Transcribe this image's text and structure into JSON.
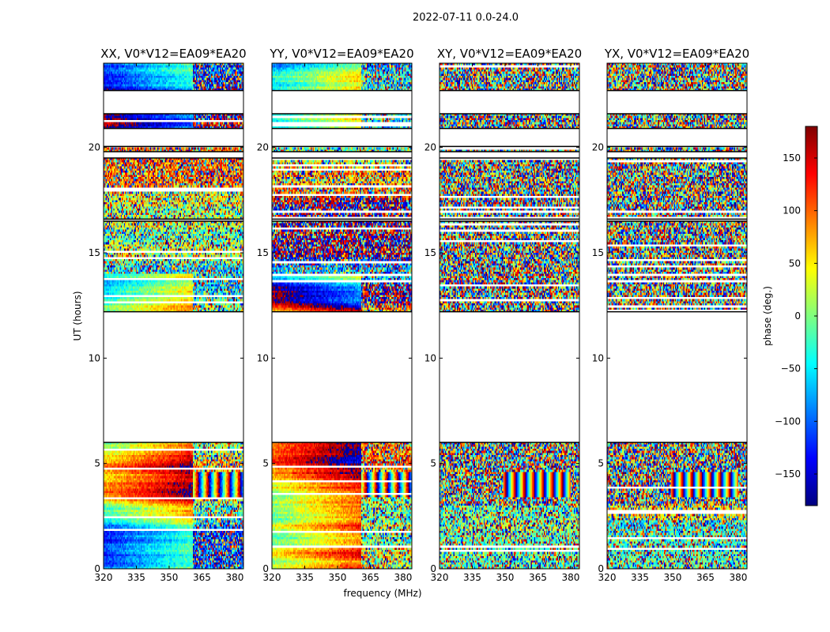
{
  "chart_data": {
    "type": "heatmap",
    "suptitle": "2022-07-11 0.0-24.0",
    "xlabel": "frequency (MHz)",
    "ylabel": "UT (hours)",
    "xlim": [
      320,
      384
    ],
    "ylim": [
      0,
      24
    ],
    "xticks": [
      320,
      335,
      350,
      365,
      380
    ],
    "yticks": [
      0,
      5,
      10,
      15,
      20
    ],
    "colorbar": {
      "label": "phase (deg.)",
      "range": [
        -180,
        180
      ],
      "ticks": [
        150,
        100,
        50,
        0,
        -50,
        -100,
        -150
      ],
      "colormap": [
        "#00007f",
        "#0000ff",
        "#007fff",
        "#00ffff",
        "#7fff7f",
        "#ffff00",
        "#ff7f00",
        "#ff0000",
        "#7f0000"
      ]
    },
    "data_blocks_hours": [
      [
        0.0,
        6.0
      ],
      [
        12.2,
        16.5
      ],
      [
        16.6,
        19.5
      ],
      [
        19.8,
        20.05
      ],
      [
        20.9,
        21.6
      ],
      [
        22.7,
        24.0
      ]
    ],
    "rfi_split_mhz": 361,
    "panels": [
      {
        "title": "XX, V0*V12=EA09*EA20",
        "kind": "parallel",
        "seed": 11
      },
      {
        "title": "YY, V0*V12=EA09*EA20",
        "kind": "parallel",
        "seed": 23
      },
      {
        "title": "XY, V0*V12=EA09*EA20",
        "kind": "cross",
        "seed": 37
      },
      {
        "title": "YX, V0*V12=EA09*EA20",
        "kind": "cross",
        "seed": 51
      }
    ]
  }
}
